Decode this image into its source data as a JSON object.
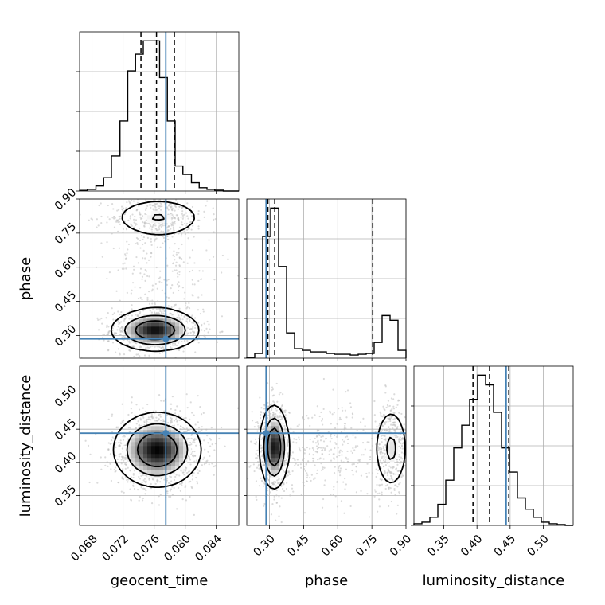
{
  "chart_data": {
    "type": "corner",
    "parameters": [
      "geocent_time",
      "phase",
      "luminosity_distance"
    ],
    "labels": {
      "geocent_time": "geocent_time",
      "phase": "phase",
      "luminosity_distance": "luminosity_distance"
    },
    "ranges": {
      "geocent_time": [
        0.0664,
        0.0869
      ],
      "phase": [
        0.2,
        0.9
      ],
      "luminosity_distance": [
        0.305,
        0.545
      ]
    },
    "ticks": {
      "geocent_time": [
        "0.068",
        "0.072",
        "0.076",
        "0.080",
        "0.084"
      ],
      "phase": [
        "0.30",
        "0.45",
        "0.60",
        "0.75",
        "0.90"
      ],
      "luminosity_distance": [
        "0.35",
        "0.40",
        "0.45",
        "0.50"
      ]
    },
    "truths": {
      "geocent_time": 0.0775,
      "phase": 0.285,
      "luminosity_distance": 0.444
    },
    "quantiles": {
      "geocent_time": [
        0.0743,
        0.0763,
        0.0786
      ],
      "phase": [
        0.293,
        0.323,
        0.754
      ],
      "luminosity_distance": [
        0.394,
        0.419,
        0.448
      ]
    },
    "histograms": {
      "geocent_time": {
        "edges": [
          0.0664,
          0.0674,
          0.0685,
          0.0695,
          0.0705,
          0.0716,
          0.0726,
          0.0736,
          0.0746,
          0.0756,
          0.0767,
          0.0777,
          0.0787,
          0.0797,
          0.0808,
          0.0818,
          0.0828,
          0.0838,
          0.0849,
          0.0859,
          0.0869
        ],
        "counts": [
          0.004,
          0.01,
          0.03,
          0.08,
          0.21,
          0.42,
          0.72,
          0.82,
          0.9,
          0.9,
          0.68,
          0.42,
          0.15,
          0.1,
          0.05,
          0.02,
          0.01,
          0.005,
          0.0,
          0.0
        ]
      },
      "phase": {
        "edges": [
          0.2,
          0.235,
          0.27,
          0.305,
          0.34,
          0.375,
          0.41,
          0.445,
          0.48,
          0.515,
          0.55,
          0.585,
          0.62,
          0.655,
          0.69,
          0.725,
          0.76,
          0.795,
          0.83,
          0.865,
          0.9
        ],
        "counts": [
          0.005,
          0.03,
          0.77,
          0.95,
          0.58,
          0.16,
          0.06,
          0.05,
          0.04,
          0.04,
          0.03,
          0.025,
          0.025,
          0.02,
          0.025,
          0.03,
          0.1,
          0.27,
          0.24,
          0.05
        ]
      },
      "luminosity_distance": {
        "edges": [
          0.305,
          0.317,
          0.329,
          0.341,
          0.353,
          0.365,
          0.377,
          0.389,
          0.401,
          0.413,
          0.425,
          0.437,
          0.449,
          0.461,
          0.473,
          0.485,
          0.497,
          0.509,
          0.521,
          0.533,
          0.545
        ],
        "counts": [
          0.01,
          0.02,
          0.05,
          0.13,
          0.28,
          0.48,
          0.62,
          0.78,
          0.93,
          0.87,
          0.7,
          0.48,
          0.33,
          0.17,
          0.1,
          0.05,
          0.02,
          0.01,
          0.005,
          0.0
        ]
      }
    },
    "density_peaks": {
      "phase_vs_geocent_time": [
        {
          "x": 0.0761,
          "y": 0.323,
          "sx": 0.0025,
          "sy": 0.04,
          "w": 1.0
        },
        {
          "x": 0.0765,
          "y": 0.82,
          "sx": 0.0028,
          "sy": 0.04,
          "w": 0.3
        },
        {
          "x": 0.0769,
          "y": 0.58,
          "sx": 0.003,
          "sy": 0.18,
          "w": 0.05
        }
      ],
      "luminosity_distance_vs_geocent_time": [
        {
          "x": 0.0764,
          "y": 0.419,
          "sx": 0.0025,
          "sy": 0.025,
          "w": 1.0
        }
      ],
      "luminosity_distance_vs_phase": [
        {
          "x": 0.32,
          "y": 0.423,
          "sx": 0.028,
          "sy": 0.028,
          "w": 1.0
        },
        {
          "x": 0.835,
          "y": 0.421,
          "sx": 0.035,
          "sy": 0.03,
          "w": 0.35
        },
        {
          "x": 0.555,
          "y": 0.42,
          "sx": 0.1,
          "sy": 0.03,
          "w": 0.08
        }
      ]
    },
    "grid": true,
    "colors": {
      "truth": "#4682b4",
      "histogram": "#000000",
      "density": "#000000",
      "scatter": "#bdbdbd",
      "grid": "#b0b0b0"
    }
  }
}
